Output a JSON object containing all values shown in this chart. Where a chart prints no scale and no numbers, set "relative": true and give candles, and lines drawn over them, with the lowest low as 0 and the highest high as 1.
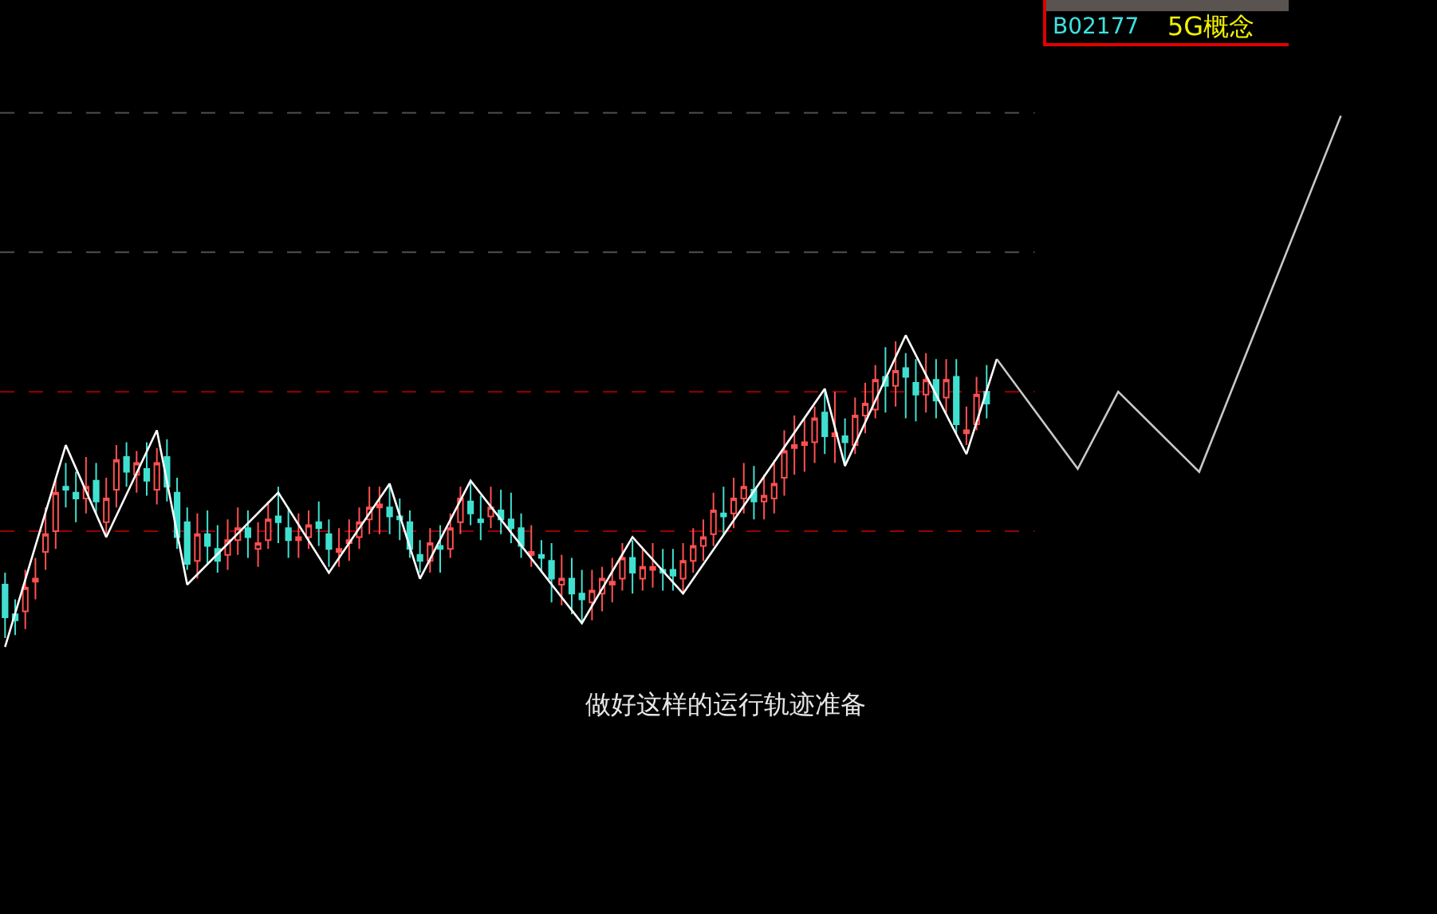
{
  "chart_data": {
    "type": "candlestick",
    "relative": true,
    "categories": [
      null,
      null,
      null,
      null,
      null,
      null,
      null,
      null,
      null,
      null,
      null,
      null,
      null,
      null,
      null,
      null,
      null,
      null,
      null,
      null,
      null,
      null,
      null,
      null,
      null,
      null,
      null,
      null,
      null,
      null,
      null,
      null,
      null,
      null,
      null,
      null,
      null,
      null,
      null,
      null,
      null,
      null,
      null,
      null,
      null,
      null,
      null,
      null,
      null,
      null,
      null,
      null,
      null,
      null,
      null,
      null,
      null,
      null,
      null,
      null,
      null,
      null,
      null,
      null,
      null,
      null,
      null,
      null,
      null,
      null,
      null,
      null,
      null,
      null,
      null,
      null,
      null,
      null,
      null,
      null,
      null,
      null,
      null,
      null,
      null,
      null,
      null,
      null,
      null,
      null,
      null,
      null,
      null,
      null,
      null,
      null,
      null,
      null,
      null,
      null,
      null,
      null,
      null,
      null,
      null,
      null,
      null,
      null,
      null,
      null,
      null,
      null,
      null,
      null,
      null,
      null,
      null,
      null,
      null,
      null,
      null,
      null,
      null,
      null,
      null,
      null,
      null,
      null,
      null,
      null,
      null,
      null,
      null,
      null,
      null,
      null,
      null,
      null,
      null,
      null,
      null,
      null
    ],
    "ohlc": [
      [
        0.18,
        0.22,
        0.0,
        0.07
      ],
      [
        0.08,
        0.13,
        0.01,
        0.06
      ],
      [
        0.09,
        0.23,
        0.03,
        0.17
      ],
      [
        0.19,
        0.27,
        0.13,
        0.2
      ],
      [
        0.29,
        0.44,
        0.23,
        0.35
      ],
      [
        0.36,
        0.54,
        0.3,
        0.49
      ],
      [
        0.51,
        0.59,
        0.44,
        0.5
      ],
      [
        0.49,
        0.56,
        0.39,
        0.47
      ],
      [
        0.47,
        0.61,
        0.42,
        0.51
      ],
      [
        0.53,
        0.59,
        0.42,
        0.46
      ],
      [
        0.39,
        0.54,
        0.35,
        0.47
      ],
      [
        0.5,
        0.65,
        0.44,
        0.6
      ],
      [
        0.61,
        0.66,
        0.51,
        0.56
      ],
      [
        0.55,
        0.63,
        0.49,
        0.59
      ],
      [
        0.57,
        0.66,
        0.48,
        0.53
      ],
      [
        0.5,
        0.64,
        0.45,
        0.59
      ],
      [
        0.61,
        0.67,
        0.46,
        0.51
      ],
      [
        0.49,
        0.54,
        0.3,
        0.34
      ],
      [
        0.39,
        0.44,
        0.23,
        0.25
      ],
      [
        0.26,
        0.42,
        0.2,
        0.35
      ],
      [
        0.35,
        0.43,
        0.25,
        0.31
      ],
      [
        0.3,
        0.38,
        0.22,
        0.26
      ],
      [
        0.28,
        0.4,
        0.23,
        0.33
      ],
      [
        0.33,
        0.44,
        0.28,
        0.37
      ],
      [
        0.37,
        0.43,
        0.27,
        0.34
      ],
      [
        0.3,
        0.39,
        0.24,
        0.32
      ],
      [
        0.33,
        0.46,
        0.3,
        0.4
      ],
      [
        0.41,
        0.51,
        0.32,
        0.39
      ],
      [
        0.37,
        0.44,
        0.27,
        0.33
      ],
      [
        0.33,
        0.42,
        0.27,
        0.34
      ],
      [
        0.34,
        0.43,
        0.3,
        0.38
      ],
      [
        0.39,
        0.46,
        0.31,
        0.37
      ],
      [
        0.35,
        0.4,
        0.24,
        0.3
      ],
      [
        0.29,
        0.37,
        0.24,
        0.3
      ],
      [
        0.32,
        0.4,
        0.26,
        0.33
      ],
      [
        0.34,
        0.44,
        0.3,
        0.39
      ],
      [
        0.4,
        0.51,
        0.35,
        0.44
      ],
      [
        0.44,
        0.51,
        0.35,
        0.45
      ],
      [
        0.44,
        0.52,
        0.35,
        0.41
      ],
      [
        0.41,
        0.47,
        0.33,
        0.4
      ],
      [
        0.39,
        0.43,
        0.27,
        0.3
      ],
      [
        0.28,
        0.33,
        0.22,
        0.26
      ],
      [
        0.26,
        0.37,
        0.22,
        0.32
      ],
      [
        0.31,
        0.38,
        0.22,
        0.3
      ],
      [
        0.3,
        0.42,
        0.27,
        0.37
      ],
      [
        0.39,
        0.51,
        0.35,
        0.47
      ],
      [
        0.46,
        0.53,
        0.38,
        0.42
      ],
      [
        0.4,
        0.48,
        0.33,
        0.39
      ],
      [
        0.41,
        0.51,
        0.37,
        0.44
      ],
      [
        0.43,
        0.5,
        0.35,
        0.4
      ],
      [
        0.4,
        0.49,
        0.32,
        0.37
      ],
      [
        0.37,
        0.42,
        0.27,
        0.31
      ],
      [
        0.28,
        0.38,
        0.24,
        0.29
      ],
      [
        0.28,
        0.33,
        0.22,
        0.27
      ],
      [
        0.26,
        0.32,
        0.12,
        0.2
      ],
      [
        0.18,
        0.28,
        0.11,
        0.2
      ],
      [
        0.2,
        0.27,
        0.08,
        0.15
      ],
      [
        0.15,
        0.23,
        0.05,
        0.13
      ],
      [
        0.12,
        0.23,
        0.06,
        0.16
      ],
      [
        0.15,
        0.24,
        0.09,
        0.2
      ],
      [
        0.18,
        0.27,
        0.12,
        0.19
      ],
      [
        0.2,
        0.32,
        0.16,
        0.27
      ],
      [
        0.27,
        0.33,
        0.15,
        0.22
      ],
      [
        0.2,
        0.3,
        0.16,
        0.24
      ],
      [
        0.23,
        0.32,
        0.17,
        0.24
      ],
      [
        0.23,
        0.3,
        0.16,
        0.22
      ],
      [
        0.23,
        0.3,
        0.16,
        0.21
      ],
      [
        0.2,
        0.32,
        0.15,
        0.26
      ],
      [
        0.26,
        0.37,
        0.22,
        0.31
      ],
      [
        0.31,
        0.4,
        0.26,
        0.34
      ],
      [
        0.35,
        0.49,
        0.31,
        0.43
      ],
      [
        0.42,
        0.51,
        0.35,
        0.41
      ],
      [
        0.42,
        0.54,
        0.37,
        0.47
      ],
      [
        0.47,
        0.59,
        0.42,
        0.51
      ],
      [
        0.5,
        0.58,
        0.4,
        0.46
      ],
      [
        0.46,
        0.55,
        0.4,
        0.48
      ],
      [
        0.47,
        0.6,
        0.42,
        0.52
      ],
      [
        0.54,
        0.7,
        0.48,
        0.63
      ],
      [
        0.64,
        0.75,
        0.55,
        0.65
      ],
      [
        0.65,
        0.74,
        0.56,
        0.66
      ],
      [
        0.66,
        0.78,
        0.59,
        0.74
      ],
      [
        0.76,
        0.83,
        0.62,
        0.68
      ],
      [
        0.68,
        0.83,
        0.59,
        0.69
      ],
      [
        0.68,
        0.74,
        0.58,
        0.66
      ],
      [
        0.65,
        0.81,
        0.62,
        0.75
      ],
      [
        0.75,
        0.86,
        0.69,
        0.79
      ],
      [
        0.77,
        0.92,
        0.74,
        0.87
      ],
      [
        0.88,
        0.98,
        0.76,
        0.85
      ],
      [
        0.85,
        1.0,
        0.78,
        0.9
      ],
      [
        0.91,
        0.96,
        0.74,
        0.88
      ],
      [
        0.86,
        0.94,
        0.73,
        0.82
      ],
      [
        0.82,
        0.96,
        0.76,
        0.87
      ],
      [
        0.87,
        0.94,
        0.74,
        0.8
      ],
      [
        0.81,
        0.94,
        0.76,
        0.87
      ],
      [
        0.88,
        0.94,
        0.69,
        0.72
      ],
      [
        0.69,
        0.78,
        0.65,
        0.7
      ],
      [
        0.72,
        0.88,
        0.7,
        0.82
      ],
      [
        0.83,
        0.92,
        0.74,
        0.79
      ],
      null,
      null,
      null,
      null,
      null,
      null,
      null,
      null,
      null,
      null,
      null,
      null,
      null,
      null,
      null,
      null,
      null,
      null,
      null,
      null,
      null,
      null,
      null,
      null,
      null,
      null,
      null,
      null,
      null,
      null,
      null,
      null,
      null,
      null,
      null,
      null,
      null,
      null,
      null,
      null,
      null,
      null,
      null,
      null
    ],
    "colors": [
      "#40e0d0",
      "#40e0d0",
      "#ff5050",
      "#ff5050",
      "#ff5050",
      "#ff5050",
      "#40e0d0",
      "#40e0d0",
      "#ff5050",
      "#40e0d0",
      "#ff5050",
      "#ff5050",
      "#40e0d0",
      "#ff5050",
      "#40e0d0",
      "#ff5050",
      "#40e0d0",
      "#40e0d0",
      "#40e0d0",
      "#ff5050",
      "#40e0d0",
      "#40e0d0",
      "#ff5050",
      "#ff5050",
      "#40e0d0",
      "#ff5050",
      "#ff5050",
      "#40e0d0",
      "#40e0d0",
      "#ff5050",
      "#ff5050",
      "#40e0d0",
      "#40e0d0",
      "#ff5050",
      "#ff5050",
      "#ff5050",
      "#ff5050",
      "#ff5050",
      "#40e0d0",
      "#40e0d0",
      "#40e0d0",
      "#40e0d0",
      "#ff5050",
      "#40e0d0",
      "#ff5050",
      "#ff5050",
      "#40e0d0",
      "#40e0d0",
      "#ff5050",
      "#40e0d0",
      "#40e0d0",
      "#40e0d0",
      "#ff5050",
      "#40e0d0",
      "#40e0d0",
      "#ff5050",
      "#40e0d0",
      "#40e0d0",
      "#ff5050",
      "#ff5050",
      "#ff5050",
      "#ff5050",
      "#40e0d0",
      "#ff5050",
      "#ff5050",
      "#40e0d0",
      "#40e0d0",
      "#ff5050",
      "#ff5050",
      "#ff5050",
      "#ff5050",
      "#40e0d0",
      "#ff5050",
      "#ff5050",
      "#40e0d0",
      "#ff5050",
      "#ff5050",
      "#ff5050",
      "#ff5050",
      "#ff5050",
      "#ff5050",
      "#40e0d0",
      "#ff5050",
      "#40e0d0",
      "#ff5050",
      "#ff5050",
      "#ff5050",
      "#40e0d0",
      "#ff5050",
      "#40e0d0",
      "#40e0d0",
      "#ff5050",
      "#40e0d0",
      "#ff5050",
      "#40e0d0",
      "#ff5050",
      "#ff5050",
      "#40e0d0",
      null,
      null,
      null,
      null,
      null,
      null,
      null,
      null,
      null,
      null,
      null,
      null,
      null,
      null,
      null,
      null,
      null,
      null,
      null,
      null,
      null,
      null,
      null,
      null,
      null,
      null,
      null,
      null,
      null,
      null,
      null,
      null,
      null,
      null,
      null,
      null,
      null,
      null,
      null,
      null,
      null,
      null,
      null,
      null
    ],
    "series": [
      {
        "type": "line",
        "color": "#ffffff",
        "values": [
          -0.03,
          null,
          null,
          null,
          null,
          null,
          0.65,
          null,
          null,
          null,
          0.34,
          null,
          null,
          null,
          null,
          0.7,
          null,
          null,
          0.18,
          null,
          null,
          null,
          null,
          null,
          null,
          null,
          null,
          0.49,
          null,
          null,
          null,
          null,
          0.22,
          null,
          null,
          null,
          null,
          null,
          0.52,
          null,
          null,
          0.2,
          null,
          null,
          null,
          null,
          0.53,
          null,
          null,
          null,
          null,
          null,
          null,
          null,
          null,
          null,
          null,
          0.05,
          null,
          null,
          null,
          null,
          0.34,
          null,
          null,
          null,
          null,
          0.15,
          null,
          null,
          null,
          null,
          null,
          null,
          null,
          null,
          null,
          null,
          null,
          null,
          null,
          0.84,
          null,
          0.58,
          null,
          null,
          null,
          null,
          null,
          1.02,
          null,
          null,
          null,
          null,
          null,
          0.62,
          null,
          null,
          0.94,
          null,
          null,
          null,
          null,
          null,
          null,
          null,
          null,
          null,
          null,
          null,
          null,
          null,
          null,
          null,
          null,
          null,
          null,
          null,
          null,
          null,
          null,
          null,
          null,
          null,
          null,
          null,
          null,
          null,
          null,
          null,
          null,
          null,
          null,
          null,
          null,
          null,
          null,
          null,
          null,
          null,
          null,
          null
        ]
      },
      {
        "type": "line",
        "color": "#c8c8c8",
        "values": [
          null,
          null,
          null,
          null,
          null,
          null,
          null,
          null,
          null,
          null,
          null,
          null,
          null,
          null,
          null,
          null,
          null,
          null,
          null,
          null,
          null,
          null,
          null,
          null,
          null,
          null,
          null,
          null,
          null,
          null,
          null,
          null,
          null,
          null,
          null,
          null,
          null,
          null,
          null,
          null,
          null,
          null,
          null,
          null,
          null,
          null,
          null,
          null,
          null,
          null,
          null,
          null,
          null,
          null,
          null,
          null,
          null,
          null,
          null,
          null,
          null,
          null,
          null,
          null,
          null,
          null,
          null,
          null,
          null,
          null,
          null,
          null,
          null,
          null,
          null,
          null,
          null,
          null,
          null,
          null,
          null,
          null,
          null,
          null,
          null,
          null,
          null,
          null,
          null,
          null,
          null,
          null,
          null,
          null,
          null,
          null,
          null,
          null,
          0.94,
          null,
          null,
          null,
          null,
          null,
          null,
          null,
          0.57,
          null,
          null,
          null,
          0.83,
          null,
          null,
          null,
          null,
          null,
          null,
          null,
          0.56,
          null,
          null,
          null,
          null,
          null,
          null,
          null,
          null,
          null,
          null,
          null,
          null,
          null,
          1.76,
          null,
          null,
          null,
          null,
          null,
          null,
          null,
          null,
          null
        ]
      }
    ],
    "ref_lines": [
      {
        "axis": "y",
        "value": 1.77,
        "color": "#505050",
        "line_style": "dashed"
      },
      {
        "axis": "y",
        "value": 1.3,
        "color": "#505050",
        "line_style": "dashed"
      },
      {
        "axis": "y",
        "value": 0.83,
        "color": "#9a0000",
        "line_style": "dashed"
      },
      {
        "axis": "y",
        "value": 0.36,
        "color": "#9a0000",
        "line_style": "dashed"
      }
    ],
    "annotations": [
      "B02177",
      "5G概念",
      "做好这样的运行轨迹准备"
    ]
  }
}
